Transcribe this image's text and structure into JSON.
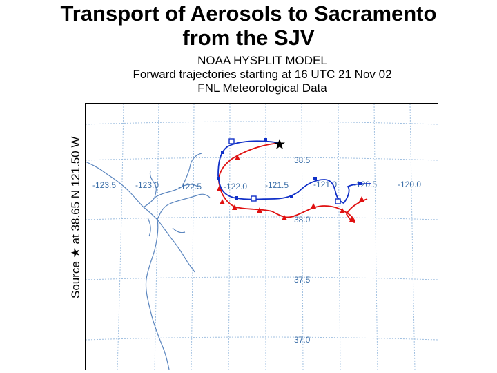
{
  "slide": {
    "title_line1": "Transport of Aerosols to Sacramento",
    "title_line2": "from the SJV"
  },
  "model_header": {
    "line1": "NOAA HYSPLIT MODEL",
    "line2": "Forward trajectories starting at 16 UTC 21 Nov 02",
    "line3": "FNL Meteorological Data"
  },
  "source_label": "Source ★ at 38.65 N 121.50 W",
  "map": {
    "longitude_labels": [
      "-123.5",
      "-123.0",
      "-122.5",
      "-122.0",
      "-121.5",
      "-121.0",
      "-120.5",
      "-120.0"
    ],
    "latitude_labels": [
      "38.5",
      "38.0",
      "37.5",
      "37.0"
    ],
    "colors": {
      "coastline": "#5b86bf",
      "grid": "#9fbfe0",
      "grid_labels": "#3c6fa8",
      "trajectory_blue": "#1030c8",
      "trajectory_red": "#e01010",
      "source_marker": "#000000"
    },
    "markers": {
      "source": "star",
      "blue_trajectory": "squares",
      "red_trajectory": "triangles"
    }
  }
}
